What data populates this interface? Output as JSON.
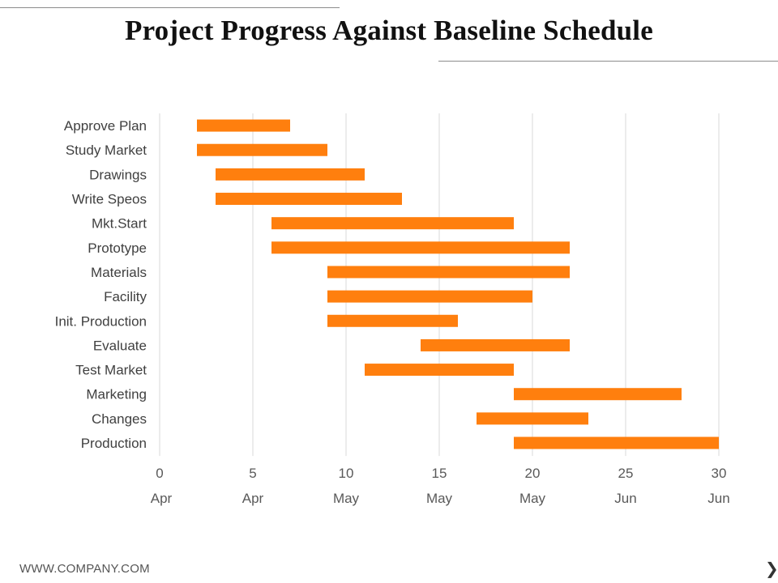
{
  "slide": {
    "title": "Project Progress Against Baseline Schedule",
    "footer": "WWW.COMPANY.COM",
    "next_icon": "chevron-right-icon"
  },
  "colors": {
    "bar": "#FF7F0E",
    "grid": "#D9D9D9",
    "axis_text": "#595959",
    "category_text": "#404040"
  },
  "chart_data": {
    "type": "bar",
    "orientation": "horizontal",
    "style": "gantt",
    "categories": [
      "Approve Plan",
      "Study Market",
      "Drawings",
      "Write Speos",
      "Mkt.Start",
      "Prototype",
      "Materials",
      "Facility",
      "Init. Production",
      "Evaluate",
      "Test Market",
      "Marketing",
      "Changes",
      "Production"
    ],
    "start": [
      2,
      2,
      3,
      3,
      6,
      6,
      9,
      9,
      9,
      14,
      11,
      19,
      17,
      19
    ],
    "end": [
      7,
      9,
      11,
      13,
      19,
      22,
      22,
      20,
      16,
      22,
      19,
      28,
      23,
      30
    ],
    "xlim": [
      0,
      30
    ],
    "xticks": [
      0,
      5,
      10,
      15,
      20,
      25,
      30
    ],
    "xtick_labels": [
      "0",
      "5",
      "10",
      "15",
      "20",
      "25",
      "30"
    ],
    "xtick_sublabels": [
      "Apr",
      "Apr",
      "May",
      "May",
      "May",
      "Jun",
      "Jun"
    ],
    "grid": true,
    "legend": "none"
  }
}
